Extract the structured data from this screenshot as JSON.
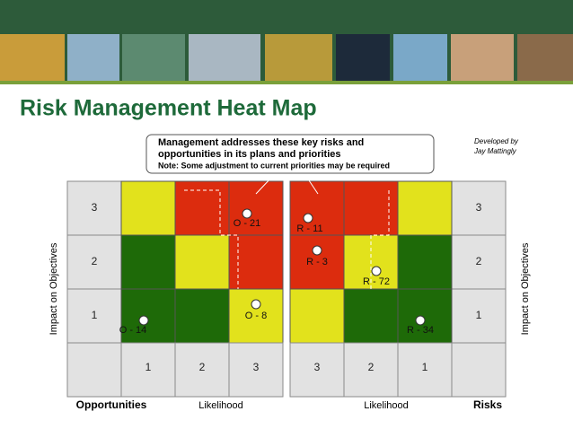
{
  "title": "Risk Management Heat Map",
  "callout": {
    "lines": [
      "Management addresses these key risks and",
      "opportunities in its plans and priorities"
    ],
    "note": "Note: Some adjustment to current priorities may be required"
  },
  "credit": [
    "Developed by",
    "Jay Mattingly"
  ],
  "y_axis_label": "Impact on Objectives",
  "panels": [
    {
      "name": "Opportunities",
      "x_label": "Likelihood",
      "label_side": "left",
      "row_labels": [
        "3",
        "2",
        "1"
      ],
      "col_labels": [
        "1",
        "2",
        "3"
      ],
      "colors": [
        [
          "#e2e21c",
          "#dc2c0e",
          "#dc2c0e"
        ],
        [
          "#1e6a08",
          "#e2e21c",
          "#dc2c0e"
        ],
        [
          "#1e6a08",
          "#1e6a08",
          "#e2e21c"
        ]
      ],
      "markers": [
        "O - 21",
        "O - 8",
        "O - 14"
      ]
    },
    {
      "name": "Risks",
      "x_label": "Likelihood",
      "label_side": "right",
      "row_labels": [
        "3",
        "2",
        "1"
      ],
      "col_labels": [
        "3",
        "2",
        "1"
      ],
      "colors": [
        [
          "#dc2c0e",
          "#dc2c0e",
          "#e2e21c"
        ],
        [
          "#dc2c0e",
          "#e2e21c",
          "#1e6a08"
        ],
        [
          "#e2e21c",
          "#1e6a08",
          "#1e6a08"
        ]
      ],
      "markers": [
        "R - 11",
        "R - 3",
        "R - 72",
        "R - 34"
      ]
    }
  ]
}
